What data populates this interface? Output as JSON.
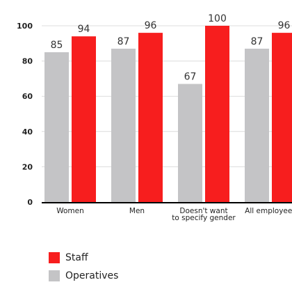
{
  "chart_data": {
    "type": "bar",
    "categories": [
      [
        "Women"
      ],
      [
        "Men"
      ],
      [
        "Doesn't want",
        "to specify gender"
      ],
      [
        "All employees"
      ]
    ],
    "series": [
      {
        "name": "Operatives",
        "color": "#c4c4c6",
        "values": [
          85,
          87,
          67,
          87
        ]
      },
      {
        "name": "Staff",
        "color": "#f71e1e",
        "values": [
          94,
          96,
          100,
          96
        ]
      }
    ],
    "ylim": [
      0,
      100
    ],
    "yticks": [
      0,
      20,
      40,
      60,
      80,
      100
    ],
    "grid": true
  },
  "legend": {
    "items": [
      {
        "label": "Staff",
        "color": "#f71e1e"
      },
      {
        "label": "Operatives",
        "color": "#c4c4c6"
      }
    ]
  }
}
